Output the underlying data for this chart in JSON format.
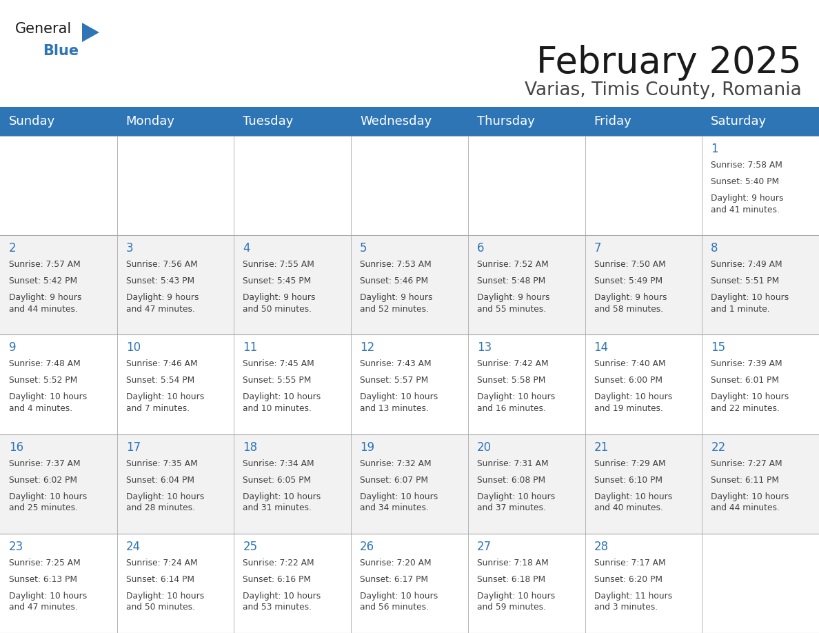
{
  "title": "February 2025",
  "subtitle": "Varias, Timis County, Romania",
  "header_bg": "#2E75B6",
  "header_text_color": "#FFFFFF",
  "day_headers": [
    "Sunday",
    "Monday",
    "Tuesday",
    "Wednesday",
    "Thursday",
    "Friday",
    "Saturday"
  ],
  "cell_bg_alt": "#F2F2F2",
  "cell_bg_norm": "#FFFFFF",
  "border_color": "#AAAAAA",
  "day_num_color": "#2E75B6",
  "text_color": "#404040",
  "background_color": "#FFFFFF",
  "calendar": [
    [
      null,
      null,
      null,
      null,
      null,
      null,
      {
        "day": "1",
        "sunrise": "7:58 AM",
        "sunset": "5:40 PM",
        "daylight": "9 hours\nand 41 minutes."
      }
    ],
    [
      {
        "day": "2",
        "sunrise": "7:57 AM",
        "sunset": "5:42 PM",
        "daylight": "9 hours\nand 44 minutes."
      },
      {
        "day": "3",
        "sunrise": "7:56 AM",
        "sunset": "5:43 PM",
        "daylight": "9 hours\nand 47 minutes."
      },
      {
        "day": "4",
        "sunrise": "7:55 AM",
        "sunset": "5:45 PM",
        "daylight": "9 hours\nand 50 minutes."
      },
      {
        "day": "5",
        "sunrise": "7:53 AM",
        "sunset": "5:46 PM",
        "daylight": "9 hours\nand 52 minutes."
      },
      {
        "day": "6",
        "sunrise": "7:52 AM",
        "sunset": "5:48 PM",
        "daylight": "9 hours\nand 55 minutes."
      },
      {
        "day": "7",
        "sunrise": "7:50 AM",
        "sunset": "5:49 PM",
        "daylight": "9 hours\nand 58 minutes."
      },
      {
        "day": "8",
        "sunrise": "7:49 AM",
        "sunset": "5:51 PM",
        "daylight": "10 hours\nand 1 minute."
      }
    ],
    [
      {
        "day": "9",
        "sunrise": "7:48 AM",
        "sunset": "5:52 PM",
        "daylight": "10 hours\nand 4 minutes."
      },
      {
        "day": "10",
        "sunrise": "7:46 AM",
        "sunset": "5:54 PM",
        "daylight": "10 hours\nand 7 minutes."
      },
      {
        "day": "11",
        "sunrise": "7:45 AM",
        "sunset": "5:55 PM",
        "daylight": "10 hours\nand 10 minutes."
      },
      {
        "day": "12",
        "sunrise": "7:43 AM",
        "sunset": "5:57 PM",
        "daylight": "10 hours\nand 13 minutes."
      },
      {
        "day": "13",
        "sunrise": "7:42 AM",
        "sunset": "5:58 PM",
        "daylight": "10 hours\nand 16 minutes."
      },
      {
        "day": "14",
        "sunrise": "7:40 AM",
        "sunset": "6:00 PM",
        "daylight": "10 hours\nand 19 minutes."
      },
      {
        "day": "15",
        "sunrise": "7:39 AM",
        "sunset": "6:01 PM",
        "daylight": "10 hours\nand 22 minutes."
      }
    ],
    [
      {
        "day": "16",
        "sunrise": "7:37 AM",
        "sunset": "6:02 PM",
        "daylight": "10 hours\nand 25 minutes."
      },
      {
        "day": "17",
        "sunrise": "7:35 AM",
        "sunset": "6:04 PM",
        "daylight": "10 hours\nand 28 minutes."
      },
      {
        "day": "18",
        "sunrise": "7:34 AM",
        "sunset": "6:05 PM",
        "daylight": "10 hours\nand 31 minutes."
      },
      {
        "day": "19",
        "sunrise": "7:32 AM",
        "sunset": "6:07 PM",
        "daylight": "10 hours\nand 34 minutes."
      },
      {
        "day": "20",
        "sunrise": "7:31 AM",
        "sunset": "6:08 PM",
        "daylight": "10 hours\nand 37 minutes."
      },
      {
        "day": "21",
        "sunrise": "7:29 AM",
        "sunset": "6:10 PM",
        "daylight": "10 hours\nand 40 minutes."
      },
      {
        "day": "22",
        "sunrise": "7:27 AM",
        "sunset": "6:11 PM",
        "daylight": "10 hours\nand 44 minutes."
      }
    ],
    [
      {
        "day": "23",
        "sunrise": "7:25 AM",
        "sunset": "6:13 PM",
        "daylight": "10 hours\nand 47 minutes."
      },
      {
        "day": "24",
        "sunrise": "7:24 AM",
        "sunset": "6:14 PM",
        "daylight": "10 hours\nand 50 minutes."
      },
      {
        "day": "25",
        "sunrise": "7:22 AM",
        "sunset": "6:16 PM",
        "daylight": "10 hours\nand 53 minutes."
      },
      {
        "day": "26",
        "sunrise": "7:20 AM",
        "sunset": "6:17 PM",
        "daylight": "10 hours\nand 56 minutes."
      },
      {
        "day": "27",
        "sunrise": "7:18 AM",
        "sunset": "6:18 PM",
        "daylight": "10 hours\nand 59 minutes."
      },
      {
        "day": "28",
        "sunrise": "7:17 AM",
        "sunset": "6:20 PM",
        "daylight": "11 hours\nand 3 minutes."
      },
      null
    ]
  ],
  "logo_text1": "General",
  "logo_text2": "Blue",
  "logo_color1": "#1a1a1a",
  "logo_color2": "#2E75B6",
  "logo_triangle_color": "#2E75B6",
  "title_fontsize": 38,
  "subtitle_fontsize": 19,
  "header_fontsize": 13,
  "day_num_fontsize": 12,
  "cell_text_fontsize": 8.8
}
